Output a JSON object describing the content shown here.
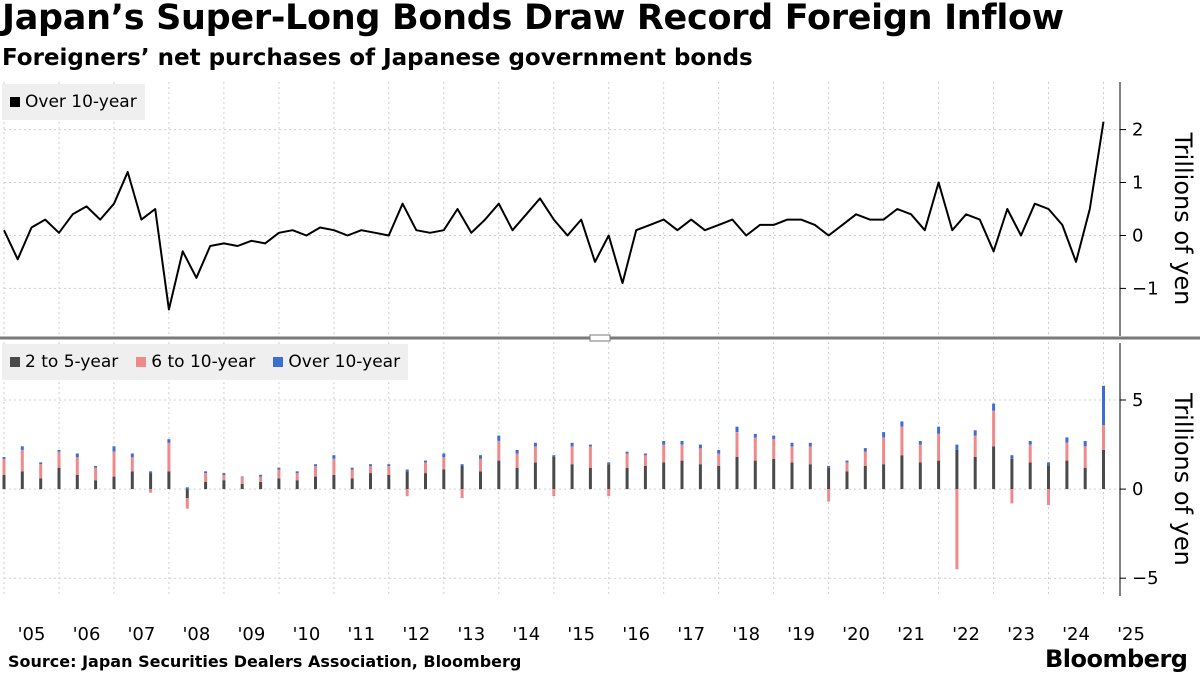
{
  "title": "Japan’s Super-Long Bonds Draw Record Foreign Inflow",
  "subtitle": "Foreigners’ net purchases of Japanese government bonds",
  "source": "Source: Japan Securities Dealers Association, Bloomberg",
  "brand": "Bloomberg",
  "chart_data": [
    {
      "type": "line",
      "legend_position": "top-left",
      "grid": true,
      "series": [
        {
          "name": "Over 10-year",
          "color": "#000000",
          "x": [
            "2005-01",
            "2005-04",
            "2005-07",
            "2005-10",
            "2006-01",
            "2006-04",
            "2006-07",
            "2006-10",
            "2007-01",
            "2007-04",
            "2007-07",
            "2007-10",
            "2008-01",
            "2008-04",
            "2008-07",
            "2008-10",
            "2009-01",
            "2009-04",
            "2009-07",
            "2009-10",
            "2010-01",
            "2010-04",
            "2010-07",
            "2010-10",
            "2011-01",
            "2011-04",
            "2011-07",
            "2011-10",
            "2012-01",
            "2012-04",
            "2012-07",
            "2012-10",
            "2013-01",
            "2013-04",
            "2013-07",
            "2013-10",
            "2014-01",
            "2014-04",
            "2014-07",
            "2014-10",
            "2015-01",
            "2015-04",
            "2015-07",
            "2015-10",
            "2016-01",
            "2016-04",
            "2016-07",
            "2016-10",
            "2017-01",
            "2017-04",
            "2017-07",
            "2017-10",
            "2018-01",
            "2018-04",
            "2018-07",
            "2018-10",
            "2019-01",
            "2019-04",
            "2019-07",
            "2019-10",
            "2020-01",
            "2020-04",
            "2020-07",
            "2020-10",
            "2021-01",
            "2021-04",
            "2021-07",
            "2021-10",
            "2022-01",
            "2022-04",
            "2022-07",
            "2022-10",
            "2023-01",
            "2023-04",
            "2023-07",
            "2023-10",
            "2024-01",
            "2024-04",
            "2024-07",
            "2024-10",
            "2025-01"
          ],
          "values": [
            0.1,
            -0.45,
            0.15,
            0.3,
            0.05,
            0.4,
            0.55,
            0.3,
            0.6,
            1.2,
            0.3,
            0.5,
            -1.4,
            -0.3,
            -0.8,
            -0.2,
            -0.15,
            -0.2,
            -0.1,
            -0.15,
            0.05,
            0.1,
            0.0,
            0.15,
            0.1,
            0.0,
            0.1,
            0.05,
            0.0,
            0.6,
            0.1,
            0.05,
            0.1,
            0.5,
            0.05,
            0.3,
            0.6,
            0.1,
            0.4,
            0.7,
            0.3,
            0.0,
            0.3,
            -0.5,
            0.0,
            -0.9,
            0.1,
            0.2,
            0.3,
            0.1,
            0.3,
            0.1,
            0.2,
            0.3,
            0.0,
            0.2,
            0.2,
            0.3,
            0.3,
            0.2,
            0.0,
            0.2,
            0.4,
            0.3,
            0.3,
            0.5,
            0.4,
            0.1,
            1.0,
            0.1,
            0.4,
            0.3,
            -0.3,
            0.5,
            0.0,
            0.6,
            0.5,
            0.2,
            -0.5,
            0.5,
            2.15
          ]
        }
      ],
      "ylabel": "Trillions of yen",
      "yticks": [
        -1,
        0,
        1,
        2
      ],
      "ylim": [
        -1.9,
        2.9
      ]
    },
    {
      "type": "bar",
      "stacked": true,
      "legend_position": "top-left",
      "grid": true,
      "series": [
        {
          "name": "2 to 5-year",
          "color": "#4a4a4a"
        },
        {
          "name": "6 to 10-year",
          "color": "#f08a8a"
        },
        {
          "name": "Over 10-year",
          "color": "#3c6ed8"
        }
      ],
      "x": [
        "2005-01",
        "2005-05",
        "2005-09",
        "2006-01",
        "2006-05",
        "2006-09",
        "2007-01",
        "2007-05",
        "2007-09",
        "2008-01",
        "2008-05",
        "2008-09",
        "2009-01",
        "2009-05",
        "2009-09",
        "2010-01",
        "2010-05",
        "2010-09",
        "2011-01",
        "2011-05",
        "2011-09",
        "2012-01",
        "2012-05",
        "2012-09",
        "2013-01",
        "2013-05",
        "2013-09",
        "2014-01",
        "2014-05",
        "2014-09",
        "2015-01",
        "2015-05",
        "2015-09",
        "2016-01",
        "2016-05",
        "2016-09",
        "2017-01",
        "2017-05",
        "2017-09",
        "2018-01",
        "2018-05",
        "2018-09",
        "2019-01",
        "2019-05",
        "2019-09",
        "2020-01",
        "2020-05",
        "2020-09",
        "2021-01",
        "2021-05",
        "2021-09",
        "2022-01",
        "2022-05",
        "2022-09",
        "2023-01",
        "2023-05",
        "2023-09",
        "2024-01",
        "2024-05",
        "2024-09",
        "2025-01"
      ],
      "values": {
        "2 to 5-year": [
          0.8,
          1.0,
          0.6,
          1.2,
          0.8,
          0.5,
          0.7,
          1.0,
          0.9,
          1.0,
          -0.5,
          0.4,
          0.5,
          0.3,
          0.4,
          0.6,
          0.5,
          0.7,
          0.8,
          0.6,
          0.9,
          0.8,
          1.0,
          0.9,
          1.1,
          1.3,
          1.0,
          1.6,
          1.2,
          1.5,
          1.8,
          1.4,
          1.2,
          1.4,
          1.2,
          1.3,
          1.5,
          1.6,
          1.4,
          1.3,
          1.8,
          1.6,
          1.7,
          1.5,
          1.4,
          1.2,
          1.0,
          1.3,
          1.4,
          1.9,
          1.5,
          1.6,
          2.2,
          1.8,
          2.4,
          1.7,
          1.5,
          1.3,
          1.6,
          1.2,
          2.2
        ],
        "6 to 10-year": [
          0.9,
          1.2,
          0.8,
          0.9,
          1.0,
          0.7,
          1.4,
          0.8,
          -0.2,
          1.6,
          -0.6,
          0.5,
          0.3,
          0.4,
          0.3,
          0.5,
          0.4,
          0.6,
          0.9,
          0.5,
          0.4,
          0.5,
          -0.4,
          0.6,
          0.7,
          -0.5,
          0.7,
          1.1,
          0.8,
          0.9,
          -0.4,
          1.0,
          1.2,
          -0.4,
          0.8,
          0.6,
          1.0,
          0.9,
          0.9,
          0.7,
          1.4,
          1.3,
          1.1,
          0.9,
          1.0,
          -0.7,
          0.5,
          0.8,
          1.5,
          1.6,
          1.0,
          1.5,
          -4.5,
          1.2,
          2.0,
          -0.8,
          1.0,
          -0.9,
          1.0,
          1.2,
          1.4
        ],
        "Over 10-year": [
          0.1,
          0.2,
          0.1,
          0.1,
          0.2,
          0.1,
          0.3,
          0.2,
          0.1,
          0.2,
          0.1,
          0.1,
          0.1,
          0.0,
          0.1,
          0.1,
          0.1,
          0.1,
          0.2,
          0.1,
          0.1,
          0.1,
          0.1,
          0.1,
          0.2,
          0.1,
          0.2,
          0.3,
          0.2,
          0.2,
          0.1,
          0.2,
          0.1,
          0.1,
          0.1,
          0.1,
          0.2,
          0.2,
          0.2,
          0.2,
          0.3,
          0.2,
          0.2,
          0.2,
          0.2,
          0.1,
          0.1,
          0.2,
          0.3,
          0.3,
          0.2,
          0.4,
          0.3,
          0.3,
          0.4,
          0.2,
          0.2,
          0.2,
          0.3,
          0.3,
          2.2
        ]
      },
      "ylabel": "Trillions of yen",
      "yticks": [
        -5,
        0,
        5
      ],
      "ylim": [
        -6,
        8.2
      ]
    }
  ],
  "x_axis": {
    "tick_labels": [
      "'05",
      "'06",
      "'07",
      "'08",
      "'09",
      "'10",
      "'11",
      "'12",
      "'13",
      "'14",
      "'15",
      "'16",
      "'17",
      "'18",
      "'19",
      "'20",
      "'21",
      "'22",
      "'23",
      "'24",
      "'25"
    ]
  }
}
